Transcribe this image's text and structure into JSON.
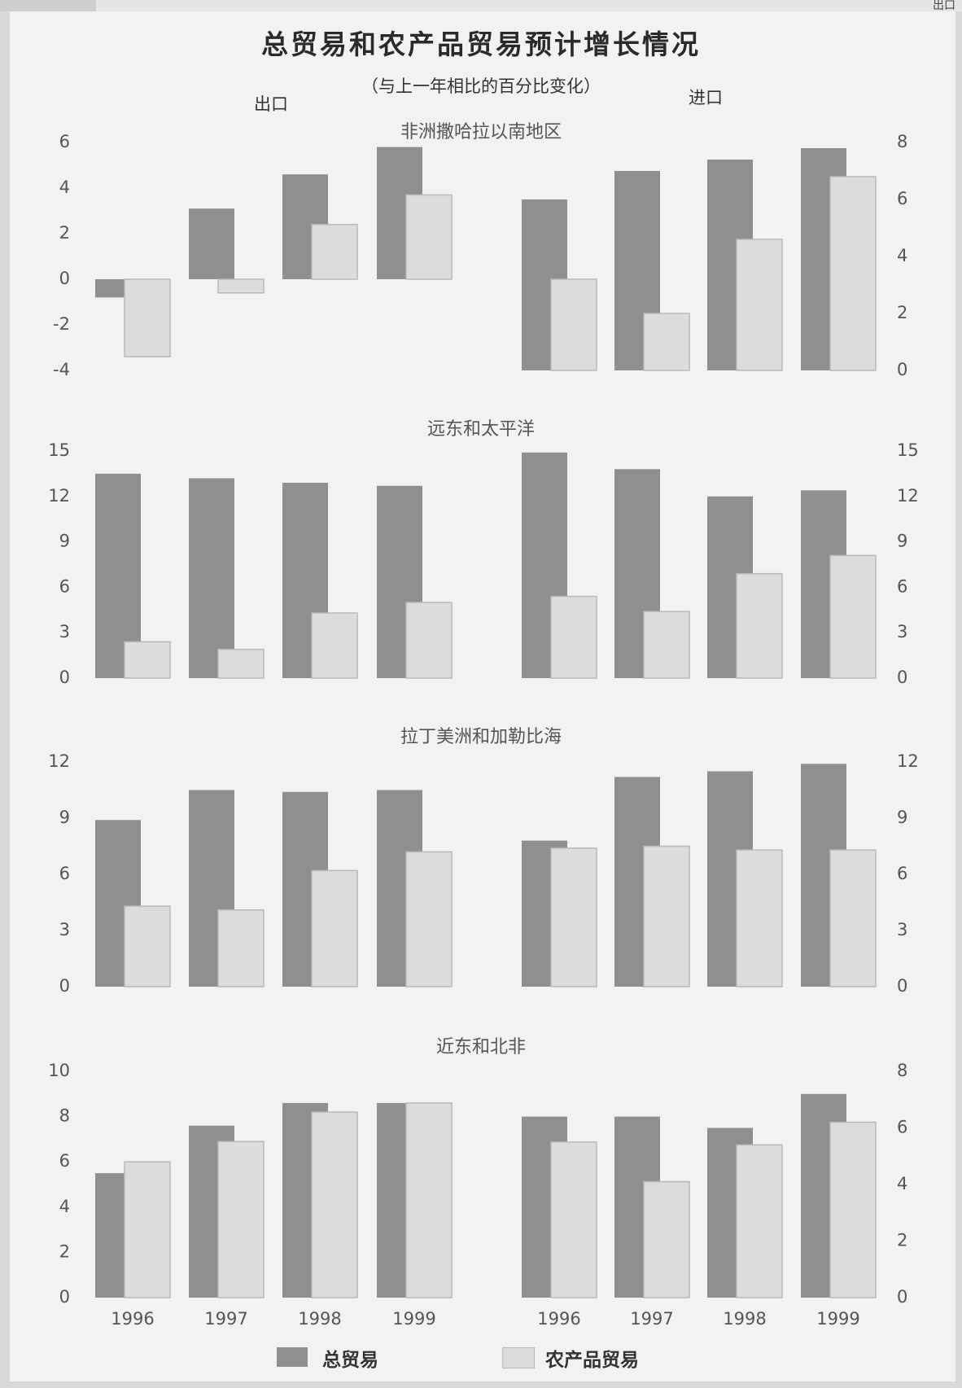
{
  "title": "总贸易和农产品贸易预计增长情况",
  "subtitle": "（与上一年相比的百分比变化）",
  "export_label": "出口",
  "import_label": "进口",
  "corner_text": "出口",
  "colors": {
    "total": "#8f8f8f",
    "agri": "#dcdcdc",
    "agri_edge": "#b9b9b9"
  },
  "legend": {
    "total": "总贸易",
    "agri": "农产品贸易"
  },
  "chart_data": [
    {
      "type": "bar",
      "title": "非洲撒哈拉以南地区",
      "categories": [
        "1996",
        "1997",
        "1998",
        "1999"
      ],
      "export": {
        "ylim": [
          -4,
          6
        ],
        "yticks": [
          -4,
          -2,
          0,
          2,
          4,
          6
        ],
        "series": [
          {
            "name": "总贸易",
            "values": [
              -0.8,
              3.1,
              4.6,
              5.8
            ]
          },
          {
            "name": "农产品贸易",
            "values": [
              -3.4,
              -0.6,
              2.4,
              3.7
            ]
          }
        ]
      },
      "import": {
        "ylim": [
          0,
          8
        ],
        "yticks": [
          0,
          2,
          4,
          6,
          8
        ],
        "series": [
          {
            "name": "总贸易",
            "values": [
              6.0,
              7.0,
              7.4,
              7.8
            ]
          },
          {
            "name": "农产品贸易",
            "values": [
              3.2,
              2.0,
              4.6,
              6.8
            ]
          }
        ]
      }
    },
    {
      "type": "bar",
      "title": "远东和太平洋",
      "categories": [
        "1996",
        "1997",
        "1998",
        "1999"
      ],
      "export": {
        "ylim": [
          0,
          15
        ],
        "yticks": [
          0,
          3,
          6,
          9,
          12,
          15
        ],
        "series": [
          {
            "name": "总贸易",
            "values": [
              13.5,
              13.2,
              12.9,
              12.7
            ]
          },
          {
            "name": "农产品贸易",
            "values": [
              2.4,
              1.9,
              4.3,
              5.0
            ]
          }
        ]
      },
      "import": {
        "ylim": [
          0,
          15
        ],
        "yticks": [
          0,
          3,
          6,
          9,
          12,
          15
        ],
        "series": [
          {
            "name": "总贸易",
            "values": [
              14.9,
              13.8,
              12.0,
              12.4
            ]
          },
          {
            "name": "农产品贸易",
            "values": [
              5.4,
              4.4,
              6.9,
              8.1
            ]
          }
        ]
      }
    },
    {
      "type": "bar",
      "title": "拉丁美洲和加勒比海",
      "categories": [
        "1996",
        "1997",
        "1998",
        "1999"
      ],
      "export": {
        "ylim": [
          0,
          12
        ],
        "yticks": [
          0,
          3,
          6,
          9,
          12
        ],
        "series": [
          {
            "name": "总贸易",
            "values": [
              8.9,
              10.5,
              10.4,
              10.5
            ]
          },
          {
            "name": "农产品贸易",
            "values": [
              4.3,
              4.1,
              6.2,
              7.2
            ]
          }
        ]
      },
      "import": {
        "ylim": [
          0,
          12
        ],
        "yticks": [
          0,
          3,
          6,
          9,
          12
        ],
        "series": [
          {
            "name": "总贸易",
            "values": [
              7.8,
              11.2,
              11.5,
              11.9
            ]
          },
          {
            "name": "农产品贸易",
            "values": [
              7.4,
              7.5,
              7.3,
              7.3
            ]
          }
        ]
      }
    },
    {
      "type": "bar",
      "title": "近东和北非",
      "categories": [
        "1996",
        "1997",
        "1998",
        "1999"
      ],
      "export": {
        "ylim": [
          0,
          10
        ],
        "yticks": [
          0,
          2,
          4,
          6,
          8,
          10
        ],
        "series": [
          {
            "name": "总贸易",
            "values": [
              5.5,
              7.6,
              8.6,
              8.6
            ]
          },
          {
            "name": "农产品贸易",
            "values": [
              6.0,
              6.9,
              8.2,
              8.6
            ]
          }
        ]
      },
      "import": {
        "ylim": [
          0,
          8
        ],
        "yticks": [
          0,
          2,
          4,
          6,
          8
        ],
        "series": [
          {
            "name": "总贸易",
            "values": [
              6.4,
              6.4,
              6.0,
              7.2
            ]
          },
          {
            "name": "农产品贸易",
            "values": [
              5.5,
              4.1,
              5.4,
              6.2
            ]
          }
        ]
      }
    }
  ]
}
